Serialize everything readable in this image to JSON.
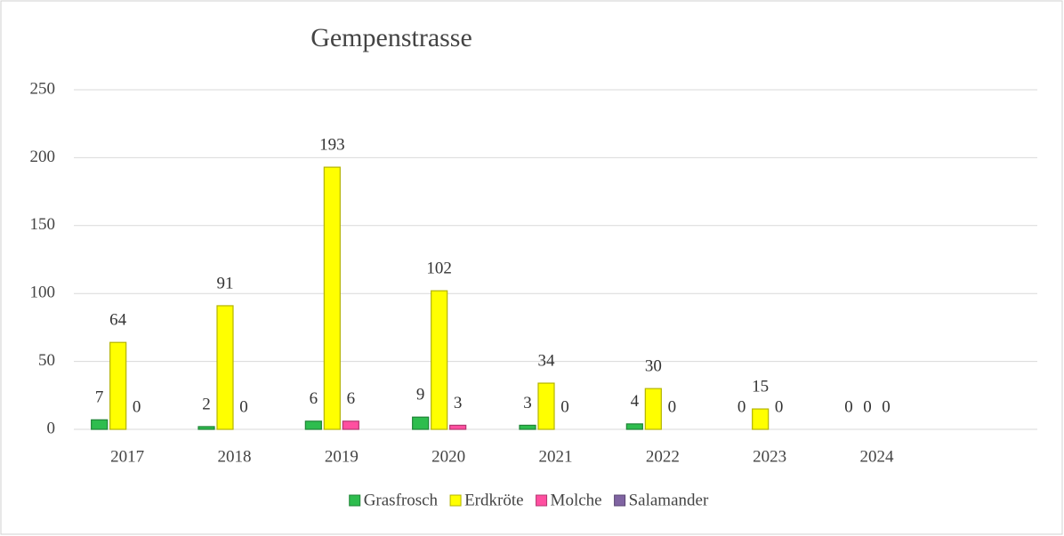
{
  "chart_data": {
    "type": "bar",
    "title": "Gempenstrasse",
    "categories": [
      "2017",
      "2018",
      "2019",
      "2020",
      "2021",
      "2022",
      "2023",
      "2024",
      null
    ],
    "series": [
      {
        "name": "Grasfrosch",
        "color": "#2ebd4e",
        "values": [
          7,
          2,
          6,
          9,
          3,
          4,
          0,
          0,
          null
        ]
      },
      {
        "name": "Erdkröte",
        "color": "#ffff00",
        "values": [
          64,
          91,
          193,
          102,
          34,
          30,
          15,
          0,
          null
        ]
      },
      {
        "name": "Molche",
        "color": "#ff4fa0",
        "values": [
          0,
          0,
          6,
          3,
          0,
          0,
          0,
          0,
          null
        ]
      },
      {
        "name": "Salamander",
        "color": "#8064a2",
        "values": [
          null,
          null,
          null,
          null,
          null,
          null,
          null,
          null,
          null
        ]
      }
    ],
    "ylim": [
      0,
      250
    ],
    "yticks": [
      0,
      50,
      100,
      150,
      200,
      250
    ],
    "grid": true,
    "legend": "bottom"
  }
}
